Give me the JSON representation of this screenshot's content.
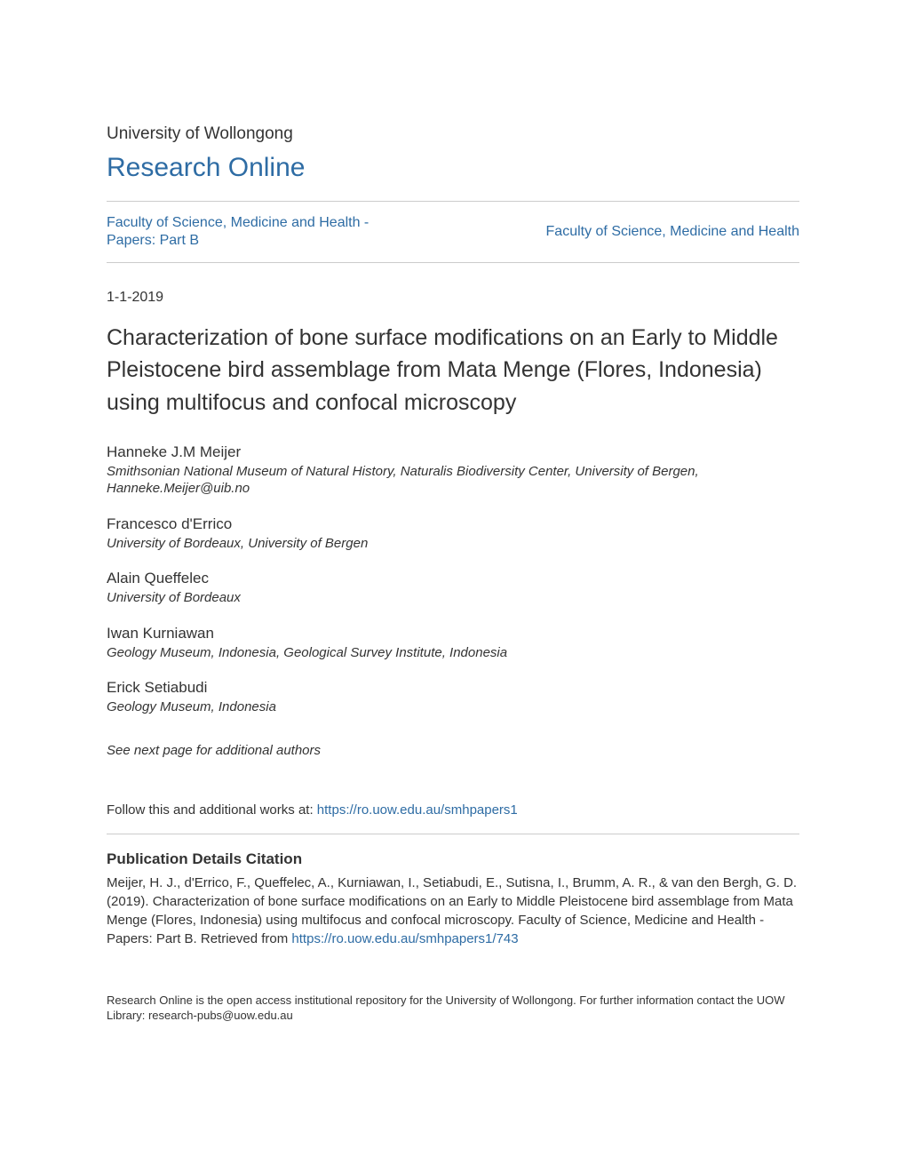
{
  "colors": {
    "link": "#2e6ca4",
    "text": "#333333",
    "divider": "#cccccc",
    "background": "#ffffff"
  },
  "typography": {
    "university_fontsize": 19,
    "repo_fontsize": 30,
    "title_fontsize": 25,
    "body_fontsize": 15,
    "author_name_fontsize": 17,
    "footer_fontsize": 13
  },
  "header": {
    "university": "University of Wollongong",
    "repository": "Research Online",
    "faculty_left": "Faculty of Science, Medicine and Health - Papers: Part B",
    "faculty_right": "Faculty of Science, Medicine and Health"
  },
  "publication": {
    "date": "1-1-2019",
    "title": "Characterization of bone surface modifications on an Early to Middle Pleistocene bird assemblage from Mata Menge (Flores, Indonesia) using multifocus and confocal microscopy"
  },
  "authors": [
    {
      "name": "Hanneke J.M Meijer",
      "affiliation": "Smithsonian National Museum of Natural History, Naturalis Biodiversity Center, University of Bergen, Hanneke.Meijer@uib.no"
    },
    {
      "name": "Francesco d'Errico",
      "affiliation": "University of Bordeaux, University of Bergen"
    },
    {
      "name": "Alain Queffelec",
      "affiliation": "University of Bordeaux"
    },
    {
      "name": "Iwan Kurniawan",
      "affiliation": "Geology Museum, Indonesia, Geological Survey Institute, Indonesia"
    },
    {
      "name": "Erick Setiabudi",
      "affiliation": "Geology Museum, Indonesia"
    }
  ],
  "see_next": "See next page for additional authors",
  "follow": {
    "prefix": "Follow this and additional works at: ",
    "url": "https://ro.uow.edu.au/smhpapers1"
  },
  "citation": {
    "heading": "Publication Details Citation",
    "body_prefix": "Meijer, H. J., d'Errico, F., Queffelec, A., Kurniawan, I., Setiabudi, E., Sutisna, I., Brumm, A. R., & van den Bergh, G. D. (2019). Characterization of bone surface modifications on an Early to Middle Pleistocene bird assemblage from Mata Menge (Flores, Indonesia) using multifocus and confocal microscopy. Faculty of Science, Medicine and Health - Papers: Part B. Retrieved from ",
    "url": "https://ro.uow.edu.au/smhpapers1/743"
  },
  "footer": "Research Online is the open access institutional repository for the University of Wollongong. For further information contact the UOW Library: research-pubs@uow.edu.au"
}
